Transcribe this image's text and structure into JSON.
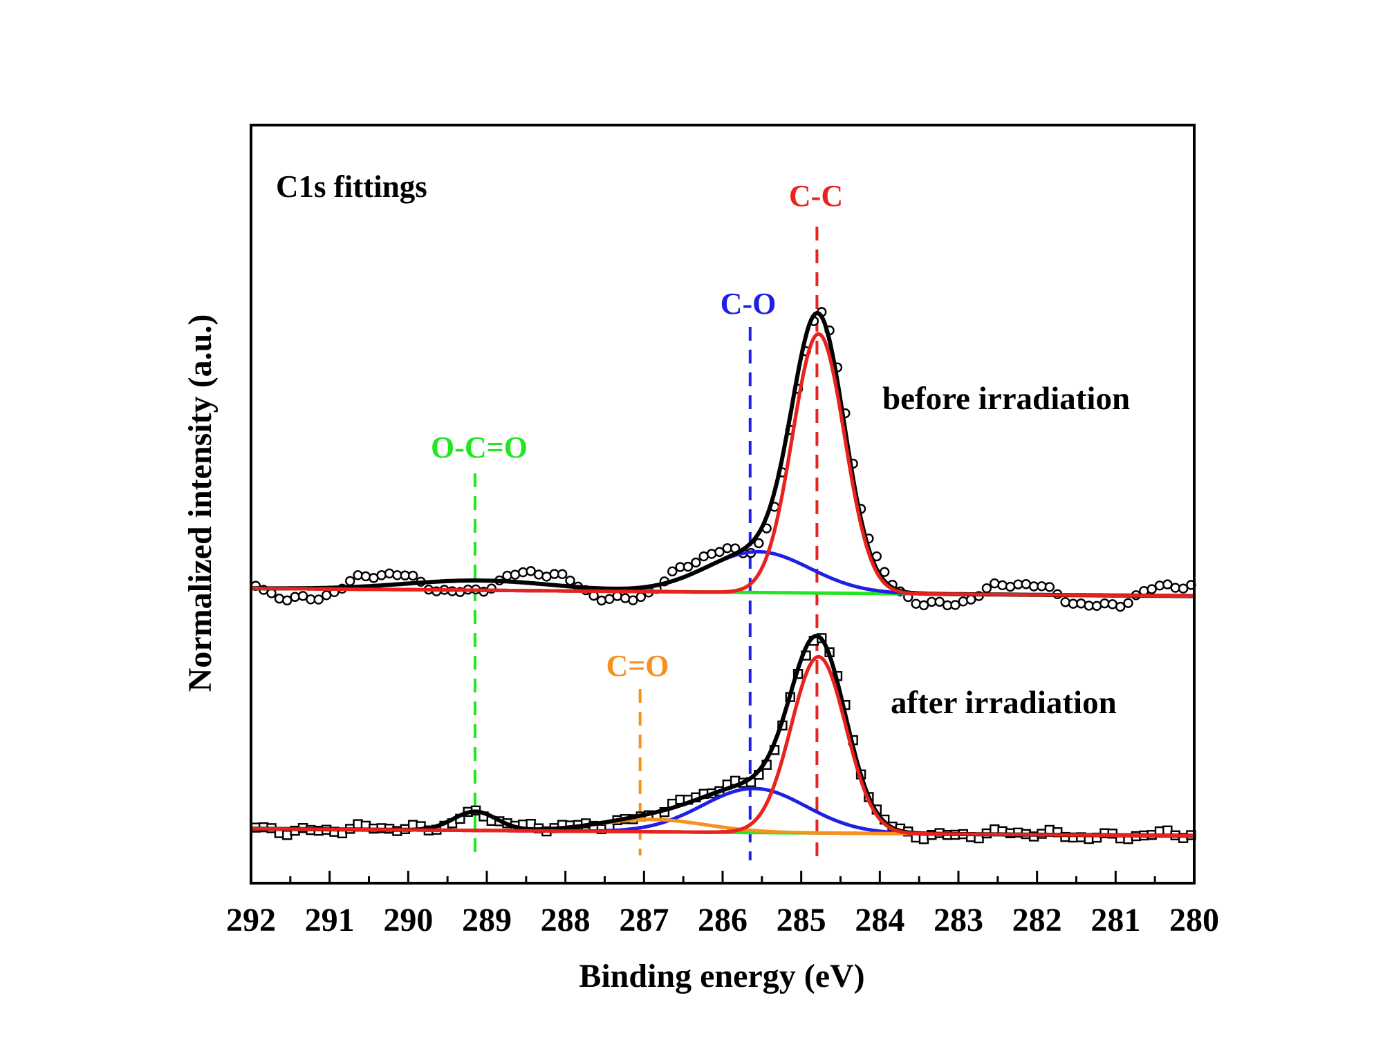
{
  "chart_data": {
    "type": "line",
    "title": "C1s fittings",
    "xlabel": "Binding energy (eV)",
    "ylabel": "Normalized intensity (a.u.)",
    "xlim": [
      292,
      280
    ],
    "x_reversed": true,
    "ylim": [
      0,
      1.17
    ],
    "grid": false,
    "legend": "none",
    "ticks": [
      "292",
      "291",
      "290",
      "289",
      "288",
      "287",
      "286",
      "285",
      "284",
      "283",
      "282",
      "281",
      "280"
    ],
    "colors": {
      "data": "#000000",
      "envelope": "#000000",
      "C-C": "#e8221c",
      "C-O": "#1f1fe6",
      "O-C=O": "#22e622",
      "C=O": "#f7901e"
    },
    "peak_markers": [
      {
        "label": "C-C",
        "position": 284.8,
        "color": "#e8221c"
      },
      {
        "label": "C-O",
        "position": 285.65,
        "color": "#1f1fe6"
      },
      {
        "label": "O-C=O",
        "position": 289.15,
        "color": "#22e622"
      },
      {
        "label": "C=O",
        "position": 287.05,
        "color": "#f7901e"
      }
    ],
    "spectra": [
      {
        "name": "before irradiation",
        "marker": "circle",
        "baseline": [
          [
            292,
            0.455
          ],
          [
            280,
            0.443
          ]
        ],
        "components": [
          {
            "name": "C-C",
            "center": 284.78,
            "height": 0.4,
            "fwhm": 0.78
          },
          {
            "name": "C-O",
            "center": 285.55,
            "height": 0.063,
            "fwhm": 1.55
          },
          {
            "name": "O-C=O",
            "center": 289.1,
            "height": 0.015,
            "fwhm": 2.2
          }
        ]
      },
      {
        "name": "after irradiation",
        "marker": "square",
        "baseline": [
          [
            292,
            0.084
          ],
          [
            280,
            0.073
          ]
        ],
        "components": [
          {
            "name": "C-C",
            "center": 284.78,
            "height": 0.272,
            "fwhm": 0.82
          },
          {
            "name": "C-O",
            "center": 285.6,
            "height": 0.068,
            "fwhm": 1.55
          },
          {
            "name": "O-C=O",
            "center": 289.15,
            "height": 0.029,
            "fwhm": 0.65
          },
          {
            "name": "C=O",
            "center": 286.9,
            "height": 0.019,
            "fwhm": 1.6
          }
        ]
      }
    ]
  }
}
